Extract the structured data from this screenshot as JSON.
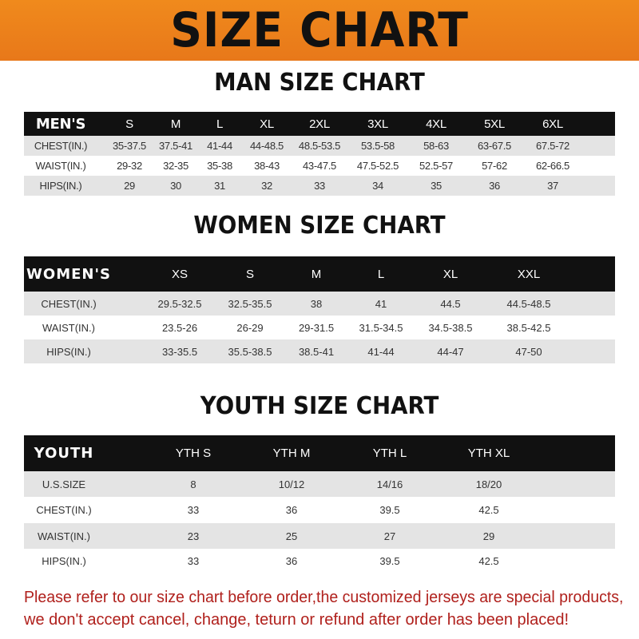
{
  "banner_title": "SIZE CHART",
  "men": {
    "title": "MAN SIZE CHART",
    "header": [
      "MEN'S",
      "S",
      "M",
      "L",
      "XL",
      "2XL",
      "3XL",
      "4XL",
      "5XL",
      "6XL"
    ],
    "rows": [
      [
        "CHEST(IN.)",
        "35-37.5",
        "37.5-41",
        "41-44",
        "44-48.5",
        "48.5-53.5",
        "53.5-58",
        "58-63",
        "63-67.5",
        "67.5-72"
      ],
      [
        "WAIST(IN.)",
        "29-32",
        "32-35",
        "35-38",
        "38-43",
        "43-47.5",
        "47.5-52.5",
        "52.5-57",
        "57-62",
        "62-66.5"
      ],
      [
        "HIPS(IN.)",
        "29",
        "30",
        "31",
        "32",
        "33",
        "34",
        "35",
        "36",
        "37"
      ]
    ]
  },
  "women": {
    "title": "WOMEN SIZE CHART",
    "header": [
      "WOMEN'S",
      "XS",
      "S",
      "M",
      "L",
      "XL",
      "XXL"
    ],
    "rows": [
      [
        "CHEST(IN.)",
        "29.5-32.5",
        "32.5-35.5",
        "38",
        "41",
        "44.5",
        "44.5-48.5"
      ],
      [
        "WAIST(IN.)",
        "23.5-26",
        "26-29",
        "29-31.5",
        "31.5-34.5",
        "34.5-38.5",
        "38.5-42.5"
      ],
      [
        "HIPS(IN.)",
        "33-35.5",
        "35.5-38.5",
        "38.5-41",
        "41-44",
        "44-47",
        "47-50"
      ]
    ]
  },
  "youth": {
    "title": "YOUTH SIZE CHART",
    "header": [
      "YOUTH",
      "YTH S",
      "YTH M",
      "YTH L",
      "YTH XL"
    ],
    "rows": [
      [
        "U.S.SIZE",
        "8",
        "10/12",
        "14/16",
        "18/20"
      ],
      [
        "CHEST(IN.)",
        "33",
        "36",
        "39.5",
        "42.5"
      ],
      [
        "WAIST(IN.)",
        "23",
        "25",
        "27",
        "29"
      ],
      [
        "HIPS(IN.)",
        "33",
        "36",
        "39.5",
        "42.5"
      ]
    ]
  },
  "footer": {
    "line1": "Please refer to our size chart before order,the customized jerseys are special products,",
    "line2": "we don't accept cancel, change, teturn or refund after order has been placed!"
  },
  "colors": {
    "banner": "#f08a1c",
    "header_row": "#111111",
    "notice_text": "#b0201c"
  }
}
